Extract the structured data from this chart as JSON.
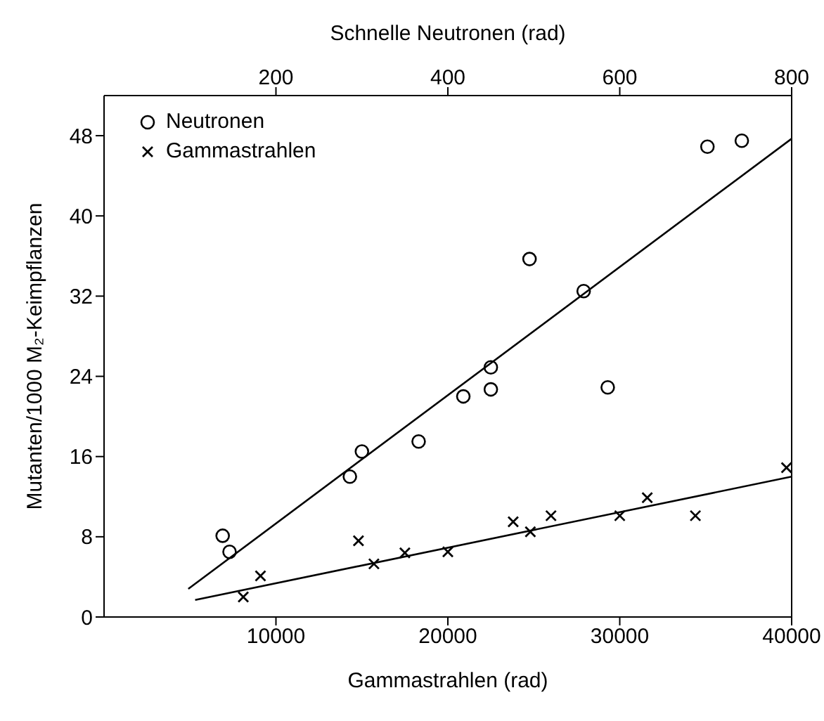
{
  "chart_data": {
    "type": "scatter",
    "xlabel": "Gammastrahlen (rad)",
    "x2label": "Schnelle Neutronen (rad)",
    "ylabel": "Mutanten/1000 M₂-Keimpflanzen",
    "xlim": [
      0,
      40000
    ],
    "xticks": [
      10000,
      20000,
      30000,
      40000
    ],
    "x2lim": [
      0,
      800
    ],
    "x2ticks": [
      200,
      400,
      600,
      800
    ],
    "ylim": [
      0,
      52
    ],
    "yticks": [
      0,
      8,
      16,
      24,
      32,
      40,
      48
    ],
    "grid": false,
    "legend": "top left",
    "series": [
      {
        "name": "Neutronen",
        "marker": "circle",
        "color": "#000000",
        "x": [
          6900,
          7300,
          14300,
          15000,
          18300,
          20900,
          22500,
          22500,
          24750,
          27900,
          29300,
          35100,
          37100
        ],
        "values": [
          8.1,
          6.5,
          14.0,
          16.5,
          17.5,
          22.0,
          22.7,
          24.9,
          35.7,
          32.5,
          22.9,
          46.9,
          47.5
        ]
      },
      {
        "name": "Gammastrahlen",
        "marker": "cross",
        "color": "#000000",
        "x": [
          8100,
          9100,
          14800,
          15700,
          17500,
          20000,
          23800,
          24800,
          26000,
          30000,
          31600,
          34400,
          39700
        ],
        "values": [
          2.0,
          4.1,
          7.6,
          5.3,
          6.4,
          6.5,
          9.5,
          8.5,
          10.1,
          10.1,
          11.9,
          10.1,
          14.9
        ]
      },
      {
        "type": "line",
        "marker": "none",
        "line_style": "solid",
        "color": "#000000",
        "x": [
          4900,
          40000
        ],
        "values": [
          2.8,
          47.7
        ]
      },
      {
        "type": "line",
        "marker": "none",
        "line_style": "solid",
        "color": "#000000",
        "x": [
          5300,
          40000
        ],
        "values": [
          1.7,
          14.0
        ]
      }
    ]
  }
}
